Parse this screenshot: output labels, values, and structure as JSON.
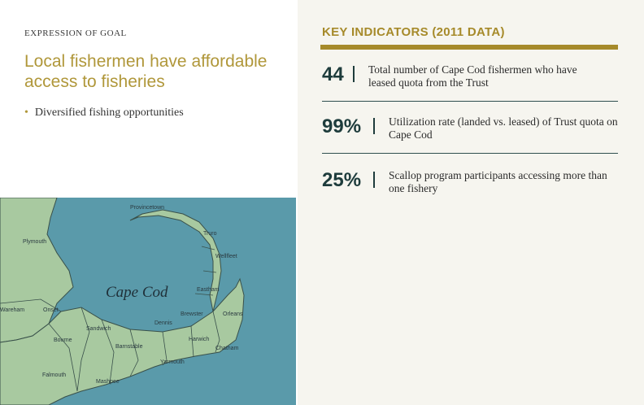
{
  "goal": {
    "eyebrow": "EXPRESSION OF GOAL",
    "title": "Local fishermen have affordable access to fisheries",
    "bullets": [
      "Diversified fishing opportunities"
    ]
  },
  "map": {
    "region_label": "Cape Cod",
    "towns": [
      "Provincetown",
      "Truro",
      "Wellfleet",
      "Eastham",
      "Orleans",
      "Brewster",
      "Chatham",
      "Harwich",
      "Dennis",
      "Yarmouth",
      "Barnstable",
      "Sandwich",
      "Mashpee",
      "Falmouth",
      "Bourne",
      "Wareham",
      "Onset",
      "Plymouth"
    ]
  },
  "indicators": {
    "header": "KEY INDICATORS (2011 DATA)",
    "items": [
      {
        "value": "44",
        "text": "Total number of Cape Cod fishermen who have leased quota from the Trust"
      },
      {
        "value": "99%",
        "text": "Utilization rate (landed vs. leased) of Trust quota on Cape Cod"
      },
      {
        "value": "25%",
        "text": "Scallop program participants accessing more than one fishery"
      }
    ]
  },
  "colors": {
    "accent_gold": "#a68a2a",
    "number_teal": "#1e3c3c",
    "water": "#5a9aaa",
    "land": "#a8c9a0"
  }
}
